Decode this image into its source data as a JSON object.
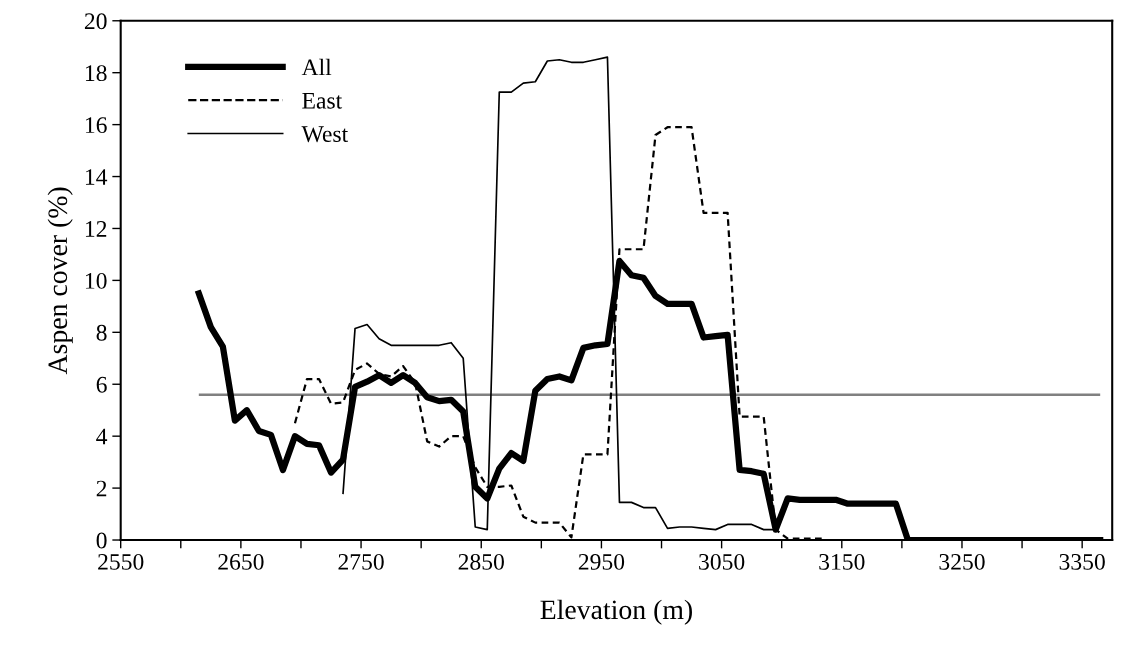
{
  "chart_data": {
    "type": "line",
    "xlabel": "Elevation (m)",
    "ylabel": "Aspen cover (%)",
    "xlim": [
      2550,
      3375
    ],
    "ylim": [
      0,
      20
    ],
    "xticks": [
      2550,
      {
        "value": 2600,
        "label": null
      },
      2650,
      {
        "value": 2700,
        "label": null
      },
      2750,
      {
        "value": 2800,
        "label": null
      },
      2850,
      {
        "value": 2900,
        "label": null
      },
      2950,
      {
        "value": 3000,
        "label": null
      },
      3050,
      {
        "value": 3100,
        "label": null
      },
      3150,
      {
        "value": 3200,
        "label": null
      },
      3250,
      {
        "value": 3300,
        "label": null
      },
      3350
    ],
    "yticks": [
      0,
      2,
      4,
      6,
      8,
      10,
      12,
      14,
      16,
      18,
      20
    ],
    "grid": false,
    "legend": "top left",
    "marker": "none",
    "ref_lines": [
      {
        "axis": "y",
        "value": 5.6,
        "color": "#808080",
        "line_style": "solid"
      }
    ],
    "series": [
      {
        "name": "All",
        "color": "#000000",
        "line_style": "solid",
        "x": [
          2615,
          2625,
          2635,
          2645,
          2655,
          2665,
          2675,
          2685,
          2695,
          2705,
          2715,
          2725,
          2735,
          2745,
          2755,
          2765,
          2775,
          2785,
          2795,
          2805,
          2815,
          2825,
          2835,
          2845,
          2855,
          2865,
          2875,
          2885,
          2895,
          2905,
          2915,
          2925,
          2935,
          2945,
          2955,
          2965,
          2975,
          2985,
          2995,
          3005,
          3015,
          3025,
          3035,
          3045,
          3055,
          3065,
          3075,
          3085,
          3095,
          3105,
          3115,
          3125,
          3135,
          3145,
          3155,
          3165,
          3175,
          3185,
          3195,
          3205,
          3215,
          3225,
          3235,
          3245,
          3255,
          3265,
          3275,
          3285,
          3295,
          3305,
          3315,
          3325,
          3335,
          3345,
          3355,
          3365
        ],
        "values": [
          9.5,
          8.2,
          7.45,
          4.6,
          5.0,
          4.2,
          4.05,
          2.7,
          4.0,
          3.7,
          3.65,
          2.6,
          3.1,
          5.9,
          6.1,
          6.35,
          6.05,
          6.35,
          6.05,
          5.5,
          5.35,
          5.4,
          4.95,
          2.05,
          1.6,
          2.75,
          3.35,
          3.05,
          5.75,
          6.2,
          6.3,
          6.15,
          7.4,
          7.5,
          7.55,
          10.75,
          10.2,
          10.1,
          9.4,
          9.1,
          9.1,
          9.1,
          7.8,
          7.85,
          7.9,
          2.7,
          2.65,
          2.55,
          0.4,
          1.6,
          1.55,
          1.55,
          1.55,
          1.55,
          1.4,
          1.4,
          1.4,
          1.4,
          1.4,
          0,
          0,
          0,
          0,
          0,
          0,
          0,
          0,
          0,
          0,
          0,
          0,
          0,
          0,
          0,
          0,
          0
        ]
      },
      {
        "name": "East",
        "color": "#000000",
        "line_style": "dashed",
        "x": [
          2695,
          2705,
          2715,
          2725,
          2735,
          2745,
          2755,
          2765,
          2775,
          2785,
          2795,
          2805,
          2815,
          2825,
          2835,
          2845,
          2855,
          2865,
          2875,
          2885,
          2895,
          2905,
          2915,
          2925,
          2935,
          2945,
          2955,
          2965,
          2975,
          2985,
          2995,
          3005,
          3015,
          3025,
          3035,
          3045,
          3055,
          3065,
          3075,
          3085,
          3095,
          3105,
          3115,
          3125,
          3135
        ],
        "values": [
          4.5,
          6.2,
          6.2,
          5.25,
          5.3,
          6.55,
          6.8,
          6.4,
          6.3,
          6.7,
          6.05,
          3.8,
          3.6,
          4.0,
          4.0,
          2.8,
          2.05,
          2.05,
          2.1,
          0.9,
          0.67,
          0.67,
          0.67,
          0.1,
          3.3,
          3.3,
          3.3,
          11.2,
          11.2,
          11.2,
          15.6,
          15.9,
          15.9,
          15.9,
          12.6,
          12.6,
          12.6,
          4.75,
          4.75,
          4.75,
          0.4,
          0.05,
          0.05,
          0.05,
          0.05
        ]
      },
      {
        "name": "West",
        "color": "#000000",
        "line_style": "solid",
        "x": [
          2735,
          2745,
          2755,
          2765,
          2775,
          2785,
          2795,
          2805,
          2815,
          2825,
          2835,
          2845,
          2855,
          2865,
          2875,
          2885,
          2895,
          2905,
          2915,
          2925,
          2935,
          2945,
          2955,
          2965,
          2975,
          2985,
          2995,
          3005,
          3015,
          3025,
          3035,
          3045,
          3055,
          3065,
          3075,
          3085,
          3095
        ],
        "values": [
          1.8,
          8.15,
          8.3,
          7.75,
          7.5,
          7.5,
          7.5,
          7.5,
          7.5,
          7.6,
          7.0,
          0.5,
          0.4,
          17.25,
          17.25,
          17.6,
          17.65,
          18.45,
          18.5,
          18.4,
          18.4,
          18.5,
          18.6,
          1.45,
          1.45,
          1.25,
          1.25,
          0.45,
          0.5,
          0.5,
          0.45,
          0.4,
          0.6,
          0.6,
          0.6,
          0.4,
          0.4
        ]
      }
    ]
  }
}
